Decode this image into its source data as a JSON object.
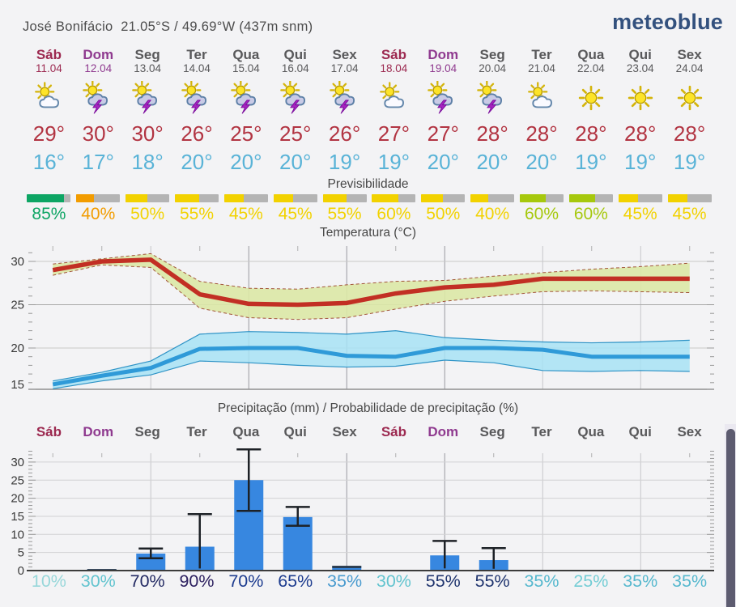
{
  "header": {
    "location": "José Bonifácio",
    "coordinates": "21.05°S / 49.69°W (437m snm)",
    "brand": "meteoblue",
    "brand_color": "#33517e"
  },
  "labels": {
    "predictability": "Previsibilidade",
    "temperature_title": "Temperatura (°C)",
    "precipitation_title": "Precipitação (mm) / Probabilidade de precipitação (%)"
  },
  "colors": {
    "high_temp_text": "#b23442",
    "low_temp_text": "#59b3d7",
    "weekday_text": "#58585a",
    "saturday_text": "#9c2950",
    "sunday_text": "#8f3a8f",
    "bar_track_gray": "#b4b4b4",
    "precip_bar": "#3787e0"
  },
  "days": [
    {
      "name": "Sáb",
      "date": "11.04",
      "name_color": "#9c2950",
      "icon": "partly-cloudy-icon",
      "high": "29°",
      "low": "16°",
      "predict_pct": "85%",
      "predict_value": 85,
      "predict_color": "#0da564",
      "prob": "10%",
      "prob_color": "#98d7da"
    },
    {
      "name": "Dom",
      "date": "12.04",
      "name_color": "#8f3a8f",
      "icon": "thunderstorm-icon",
      "high": "30°",
      "low": "17°",
      "predict_pct": "40%",
      "predict_value": 40,
      "predict_color": "#f29c00",
      "prob": "30%",
      "prob_color": "#63c4cf"
    },
    {
      "name": "Seg",
      "date": "13.04",
      "name_color": "#58585a",
      "icon": "thunderstorm-icon",
      "high": "30°",
      "low": "18°",
      "predict_pct": "50%",
      "predict_value": 50,
      "predict_color": "#f2d200",
      "prob": "70%",
      "prob_color": "#232a63"
    },
    {
      "name": "Ter",
      "date": "14.04",
      "name_color": "#58585a",
      "icon": "thunderstorm-icon",
      "high": "26°",
      "low": "20°",
      "predict_pct": "55%",
      "predict_value": 55,
      "predict_color": "#f2d200",
      "prob": "90%",
      "prob_color": "#2d2160"
    },
    {
      "name": "Qua",
      "date": "15.04",
      "name_color": "#58585a",
      "icon": "thunderstorm-icon",
      "high": "25°",
      "low": "20°",
      "predict_pct": "45%",
      "predict_value": 45,
      "predict_color": "#f2d200",
      "prob": "70%",
      "prob_color": "#1d3c8f"
    },
    {
      "name": "Qui",
      "date": "16.04",
      "name_color": "#58585a",
      "icon": "thunderstorm-icon",
      "high": "25°",
      "low": "20°",
      "predict_pct": "45%",
      "predict_value": 45,
      "predict_color": "#f2d200",
      "prob": "65%",
      "prob_color": "#1d3c8f"
    },
    {
      "name": "Sex",
      "date": "17.04",
      "name_color": "#58585a",
      "icon": "thunderstorm-icon",
      "high": "26°",
      "low": "19°",
      "predict_pct": "55%",
      "predict_value": 55,
      "predict_color": "#f2d200",
      "prob": "35%",
      "prob_color": "#4a9bcf"
    },
    {
      "name": "Sáb",
      "date": "18.04",
      "name_color": "#9c2950",
      "icon": "partly-cloudy-icon",
      "high": "27°",
      "low": "19°",
      "predict_pct": "60%",
      "predict_value": 60,
      "predict_color": "#f2d200",
      "prob": "30%",
      "prob_color": "#63c4cf"
    },
    {
      "name": "Dom",
      "date": "19.04",
      "name_color": "#8f3a8f",
      "icon": "thunderstorm-icon",
      "high": "27°",
      "low": "20°",
      "predict_pct": "50%",
      "predict_value": 50,
      "predict_color": "#f2d200",
      "prob": "55%",
      "prob_color": "#20356f"
    },
    {
      "name": "Seg",
      "date": "20.04",
      "name_color": "#58585a",
      "icon": "thunderstorm-icon",
      "high": "28°",
      "low": "20°",
      "predict_pct": "40%",
      "predict_value": 40,
      "predict_color": "#f2d200",
      "prob": "55%",
      "prob_color": "#20356f"
    },
    {
      "name": "Ter",
      "date": "21.04",
      "name_color": "#58585a",
      "icon": "partly-cloudy-icon",
      "high": "28°",
      "low": "20°",
      "predict_pct": "60%",
      "predict_value": 60,
      "predict_color": "#a6c80d",
      "prob": "35%",
      "prob_color": "#56b8ce"
    },
    {
      "name": "Qua",
      "date": "22.04",
      "name_color": "#58585a",
      "icon": "sunny-icon",
      "high": "28°",
      "low": "19°",
      "predict_pct": "60%",
      "predict_value": 60,
      "predict_color": "#a6c80d",
      "prob": "25%",
      "prob_color": "#74cdd5"
    },
    {
      "name": "Qui",
      "date": "23.04",
      "name_color": "#58585a",
      "icon": "sunny-icon",
      "high": "28°",
      "low": "19°",
      "predict_pct": "45%",
      "predict_value": 45,
      "predict_color": "#f2d200",
      "prob": "35%",
      "prob_color": "#56b8ce"
    },
    {
      "name": "Sex",
      "date": "24.04",
      "name_color": "#58585a",
      "icon": "sunny-icon",
      "high": "28°",
      "low": "19°",
      "predict_pct": "45%",
      "predict_value": 45,
      "predict_color": "#f2d200",
      "prob": "35%",
      "prob_color": "#56b8ce"
    }
  ],
  "chart_data": [
    {
      "type": "line",
      "title": "Temperatura (°C)",
      "categories": [
        "Sáb",
        "Dom",
        "Seg",
        "Ter",
        "Qua",
        "Qui",
        "Sex",
        "Sáb",
        "Dom",
        "Seg",
        "Ter",
        "Qua",
        "Qui",
        "Sex"
      ],
      "ylim": [
        15,
        31
      ],
      "yticks": [
        15,
        20,
        25,
        30
      ],
      "grid": true,
      "series": [
        {
          "name": "max-temp",
          "color": "#c22f24",
          "values": [
            29,
            30,
            30.2,
            26.2,
            25.1,
            25,
            25.2,
            26.3,
            27,
            27.3,
            28,
            28,
            28,
            28
          ]
        },
        {
          "name": "max-temp-range-high",
          "values": [
            29.7,
            30.3,
            30.9,
            27.7,
            26.9,
            26.8,
            27.3,
            27.7,
            27.8,
            28.3,
            28.7,
            29.1,
            29.4,
            29.8
          ]
        },
        {
          "name": "max-temp-range-low",
          "values": [
            28.4,
            29.6,
            29.3,
            24.6,
            23.5,
            23.3,
            23.5,
            24.5,
            25.4,
            26.0,
            26.5,
            26.6,
            26.5,
            26.4
          ]
        },
        {
          "name": "min-temp",
          "color": "#2f9ad8",
          "values": [
            15.8,
            16.8,
            17.7,
            19.9,
            20,
            20,
            19.1,
            19,
            20,
            20,
            19.8,
            19,
            19,
            19
          ]
        },
        {
          "name": "min-temp-range-high",
          "values": [
            16.2,
            17.2,
            18.5,
            21.6,
            21.9,
            21.8,
            21.6,
            22.0,
            21.2,
            20.9,
            20.7,
            20.6,
            20.7,
            20.9
          ]
        },
        {
          "name": "min-temp-range-low",
          "values": [
            15.3,
            16.2,
            16.9,
            18.5,
            18.3,
            18.0,
            17.8,
            17.9,
            18.6,
            18.3,
            17.4,
            17.3,
            17.4,
            17.3
          ]
        }
      ],
      "band_fill_max": "#dbe8a6",
      "band_fill_min": "#a7e2f4",
      "band_edge_max": "#a2543a",
      "band_edge_min": "#2e93c6"
    },
    {
      "type": "bar",
      "title": "Precipitação (mm) / Probabilidade de precipitação (%)",
      "categories": [
        "Sáb",
        "Dom",
        "Seg",
        "Ter",
        "Qua",
        "Qui",
        "Sex",
        "Sáb",
        "Dom",
        "Seg",
        "Ter",
        "Qua",
        "Qui",
        "Sex"
      ],
      "ylim": [
        0,
        34
      ],
      "yticks": [
        0,
        5,
        10,
        15,
        20,
        25,
        30
      ],
      "grid": true,
      "ylabel": "mm",
      "values": [
        0,
        0.4,
        4.7,
        6.6,
        25,
        14.8,
        1.3,
        0,
        4.2,
        2.9,
        0,
        0,
        0,
        0
      ],
      "whisker_low": [
        null,
        null,
        3.4,
        0.6,
        16.5,
        12.4,
        null,
        null,
        0.6,
        0.5,
        null,
        null,
        null,
        null
      ],
      "whisker_high": [
        null,
        null,
        6.1,
        15.6,
        33.5,
        17.6,
        null,
        null,
        8.2,
        6.2,
        null,
        null,
        null,
        null
      ],
      "dark_caps": [
        false,
        true,
        false,
        false,
        false,
        false,
        true,
        false,
        false,
        false,
        false,
        false,
        false,
        false
      ],
      "probabilities": [
        "10%",
        "30%",
        "70%",
        "90%",
        "70%",
        "65%",
        "35%",
        "30%",
        "55%",
        "55%",
        "35%",
        "25%",
        "35%",
        "35%"
      ]
    }
  ]
}
